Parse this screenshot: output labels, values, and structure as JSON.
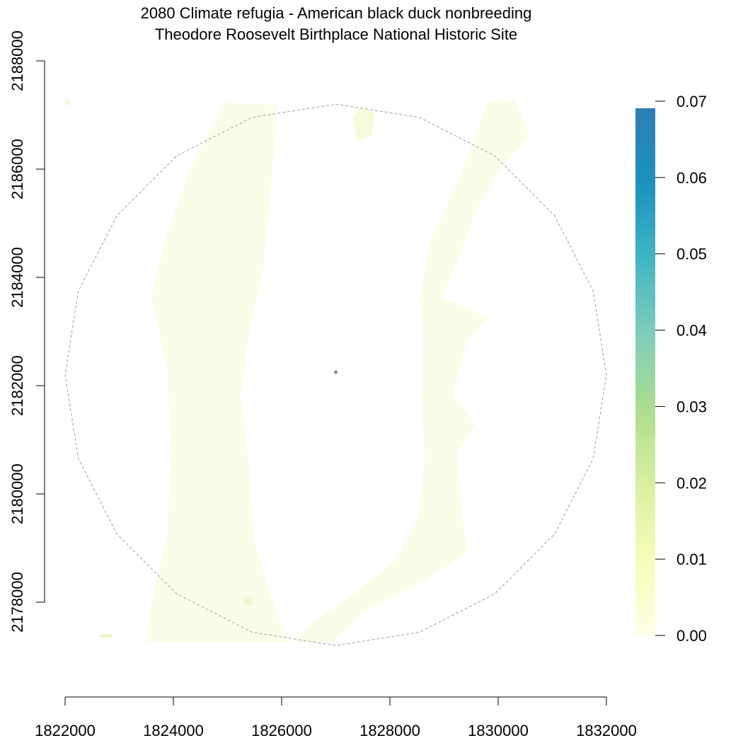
{
  "title": {
    "line1": "2080 Climate refugia - American black duck nonbreeding",
    "line2": "Theodore Roosevelt Birthplace National Historic Site"
  },
  "chart_data": {
    "type": "heatmap",
    "xlim": [
      1822000,
      1832000
    ],
    "ylim": [
      2177000,
      2188000
    ],
    "x_ticks": [
      1822000,
      1824000,
      1826000,
      1828000,
      1830000,
      1832000
    ],
    "y_ticks": [
      2178000,
      2180000,
      2182000,
      2184000,
      2186000,
      2188000
    ],
    "x_tick_labels": [
      "1822000",
      "1824000",
      "1826000",
      "1828000",
      "1830000",
      "1832000"
    ],
    "y_tick_labels": [
      "2178000",
      "2180000",
      "2182000",
      "2184000",
      "2186000",
      "2188000"
    ],
    "legend": {
      "position": "right",
      "range": [
        0,
        0.07
      ],
      "ticks": [
        0.0,
        0.01,
        0.02,
        0.03,
        0.04,
        0.05,
        0.06,
        0.07
      ],
      "tick_labels": [
        "0.00",
        "0.01",
        "0.02",
        "0.03",
        "0.04",
        "0.05",
        "0.06",
        "0.07"
      ],
      "colors": [
        "#ffffe5",
        "#f7fcb9",
        "#d9f0a3",
        "#addd8e",
        "#7fcdbb",
        "#41b6c4",
        "#1d91c0",
        "#2c7fb8"
      ]
    },
    "boundary_circle": {
      "center": [
        1827000,
        2182200
      ],
      "radius": 5000,
      "style": "dashed-gray"
    },
    "site_marker": {
      "x": 1827000,
      "y": 2182250
    },
    "raster_value_approx": 0.003
  },
  "colors": {
    "raster_fill": "#fbfde9",
    "boundary": "#a0a0a0"
  }
}
